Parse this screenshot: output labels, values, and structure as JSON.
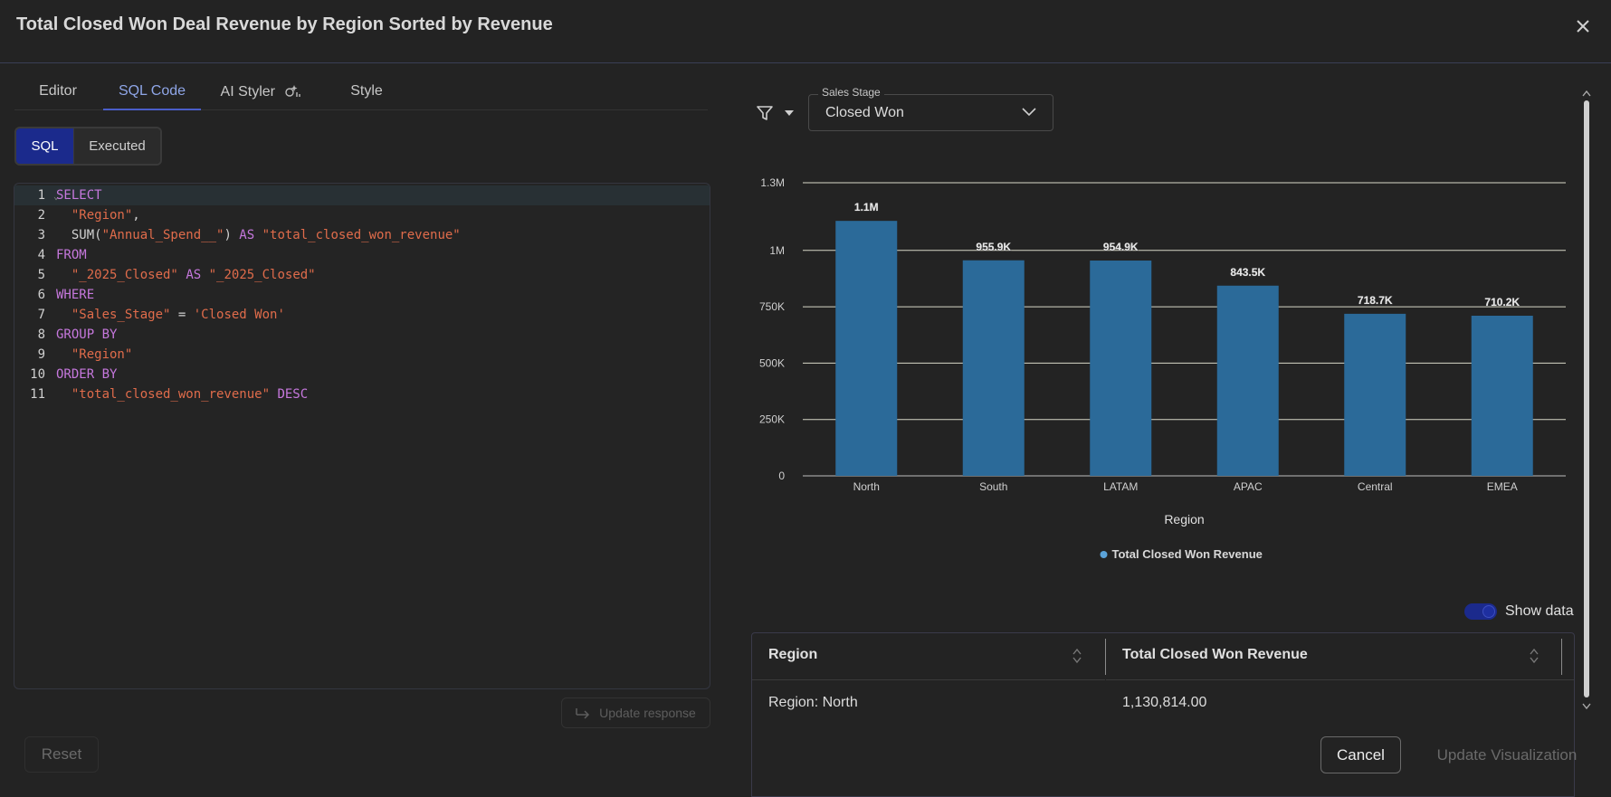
{
  "dialog": {
    "title": "Total Closed Won Deal Revenue by Region Sorted by Revenue"
  },
  "tabs": [
    {
      "label": "Editor",
      "active": false
    },
    {
      "label": "SQL Code",
      "active": true
    },
    {
      "label": "AI Styler",
      "active": false
    },
    {
      "label": "Style",
      "active": false
    }
  ],
  "mode_toggle": {
    "sql_label": "SQL",
    "executed_label": "Executed",
    "selected": "SQL"
  },
  "sql_editor": {
    "line_numbers": [
      "1",
      "2",
      "3",
      "4",
      "5",
      "6",
      "7",
      "8",
      "9",
      "10",
      "11"
    ],
    "lines": [
      [
        {
          "t": "SELECT",
          "c": "kw"
        }
      ],
      [
        {
          "t": "  ",
          "c": "plain"
        },
        {
          "t": "\"Region\"",
          "c": "str"
        },
        {
          "t": ",",
          "c": "plain"
        }
      ],
      [
        {
          "t": "  SUM(",
          "c": "plain"
        },
        {
          "t": "\"Annual_Spend__\"",
          "c": "str"
        },
        {
          "t": ") ",
          "c": "plain"
        },
        {
          "t": "AS",
          "c": "kw"
        },
        {
          "t": " ",
          "c": "plain"
        },
        {
          "t": "\"total_closed_won_revenue\"",
          "c": "str"
        }
      ],
      [
        {
          "t": "FROM",
          "c": "kw"
        }
      ],
      [
        {
          "t": "  ",
          "c": "plain"
        },
        {
          "t": "\"_2025_Closed\"",
          "c": "str"
        },
        {
          "t": " ",
          "c": "plain"
        },
        {
          "t": "AS",
          "c": "kw"
        },
        {
          "t": " ",
          "c": "plain"
        },
        {
          "t": "\"_2025_Closed\"",
          "c": "str"
        }
      ],
      [
        {
          "t": "WHERE",
          "c": "kw"
        }
      ],
      [
        {
          "t": "  ",
          "c": "plain"
        },
        {
          "t": "\"Sales_Stage\"",
          "c": "str"
        },
        {
          "t": " = ",
          "c": "plain"
        },
        {
          "t": "'Closed Won'",
          "c": "str"
        }
      ],
      [
        {
          "t": "GROUP BY",
          "c": "kw"
        }
      ],
      [
        {
          "t": "  ",
          "c": "plain"
        },
        {
          "t": "\"Region\"",
          "c": "str"
        }
      ],
      [
        {
          "t": "ORDER BY",
          "c": "kw"
        }
      ],
      [
        {
          "t": "  ",
          "c": "plain"
        },
        {
          "t": "\"total_closed_won_revenue\"",
          "c": "str"
        },
        {
          "t": " ",
          "c": "plain"
        },
        {
          "t": "DESC",
          "c": "kw"
        }
      ]
    ],
    "update_response_label": "Update response"
  },
  "filter": {
    "legend": "Sales Stage",
    "value": "Closed Won"
  },
  "chart_data": {
    "type": "bar",
    "categories": [
      "North",
      "South",
      "LATAM",
      "APAC",
      "Central",
      "EMEA"
    ],
    "series": [
      {
        "name": "Total Closed Won Revenue",
        "values": [
          1130814,
          955900,
          954900,
          843500,
          718700,
          710200
        ]
      }
    ],
    "data_labels": [
      "1.1M",
      "955.9K",
      "954.9K",
      "843.5K",
      "718.7K",
      "710.2K"
    ],
    "xlabel": "Region",
    "ylabel": "",
    "ylim": [
      0,
      1300000
    ],
    "yticks": [
      0,
      250000,
      500000,
      750000,
      1000000,
      1300000
    ],
    "ytick_labels": [
      "0",
      "250K",
      "500K",
      "750K",
      "1M",
      "1.3M"
    ],
    "grid": true,
    "legend_position": "bottom",
    "bar_color": "#2b6a99",
    "legend_dot_color": "#5ba3d9"
  },
  "show_data": {
    "label": "Show data",
    "enabled": true
  },
  "data_table": {
    "columns": [
      "Region",
      "Total Closed Won Revenue"
    ],
    "rows": [
      [
        "Region: North",
        "1,130,814.00"
      ]
    ]
  },
  "footer": {
    "reset_label": "Reset",
    "cancel_label": "Cancel",
    "update_label": "Update Visualization"
  },
  "colors": {
    "accent": "#1b2a8c",
    "tab_active": "#8fa6e8",
    "background": "#232323"
  }
}
